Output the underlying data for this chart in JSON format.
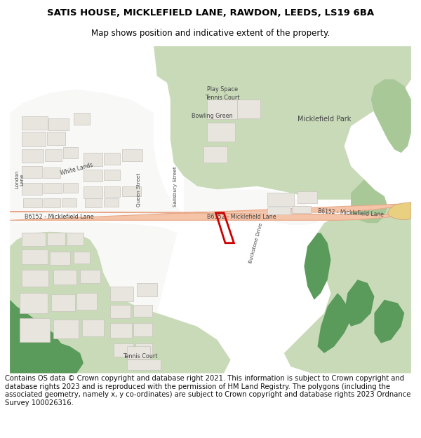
{
  "title_line1": "SATIS HOUSE, MICKLEFIELD LANE, RAWDON, LEEDS, LS19 6BA",
  "title_line2": "Map shows position and indicative extent of the property.",
  "footer": "Contains OS data © Crown copyright and database right 2021. This information is subject to Crown copyright and database rights 2023 and is reproduced with the permission of HM Land Registry. The polygons (including the associated geometry, namely x, y co-ordinates) are subject to Crown copyright and database rights 2023 Ordnance Survey 100026316.",
  "title_fontsize": 9.5,
  "title2_fontsize": 8.5,
  "footer_fontsize": 7.2,
  "fig_width": 6.0,
  "fig_height": 6.25,
  "bg_white": "#ffffff",
  "map_bg": "#f0ede8",
  "green_light": "#c8dab8",
  "green_mid": "#a8c898",
  "green_dark": "#5a9a5a",
  "road_fill": "#f5c4a8",
  "road_edge": "#e8a888",
  "road_edge2": "#d09878",
  "building_fill": "#e8e4de",
  "building_edge": "#c8c4be",
  "white_fill": "#f8f8f6",
  "plot_red": "#cc0000",
  "text_color": "#444444",
  "yellow_road": "#e8d080"
}
